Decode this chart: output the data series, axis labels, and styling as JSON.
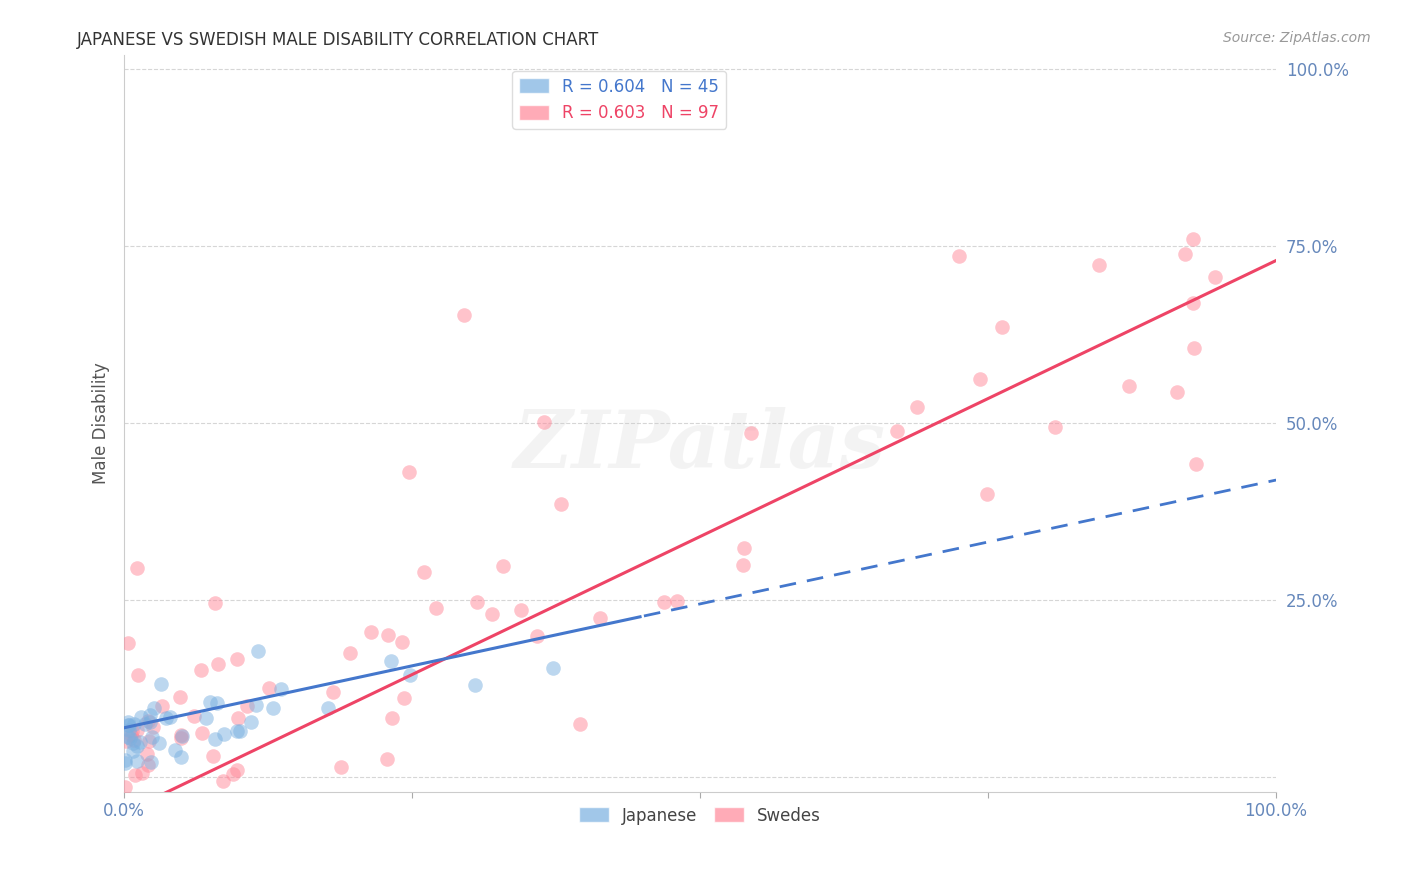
{
  "title": "JAPANESE VS SWEDISH MALE DISABILITY CORRELATION CHART",
  "source": "Source: ZipAtlas.com",
  "ylabel": "Male Disability",
  "background_color": "#ffffff",
  "grid_color": "#cccccc",
  "watermark_text": "ZIPatlas",
  "japanese_color": "#7ab0e0",
  "swedish_color": "#ff8899",
  "japanese_line_color": "#4477cc",
  "swedish_line_color": "#ee4466",
  "title_color": "#333333",
  "source_color": "#999999",
  "tick_color": "#6688bb",
  "ylabel_color": "#555555",
  "xlim": [
    0,
    1
  ],
  "ylim": [
    -0.02,
    1.02
  ],
  "xticks": [
    0,
    0.25,
    0.5,
    0.75,
    1.0
  ],
  "yticks_right": [
    0.25,
    0.5,
    0.75,
    1.0
  ],
  "xticklabels": [
    "0.0%",
    "",
    "",
    "",
    "100.0%"
  ],
  "yticklabels_right": [
    "25.0%",
    "50.0%",
    "75.0%",
    "100.0%"
  ],
  "jp_R": 0.604,
  "jp_N": 45,
  "sw_R": 0.603,
  "sw_N": 97,
  "jp_line_x": [
    0,
    0.5,
    1.0
  ],
  "jp_line_y_solid_end": 0.5,
  "sw_line_intercept": -0.05,
  "sw_line_slope": 0.8
}
